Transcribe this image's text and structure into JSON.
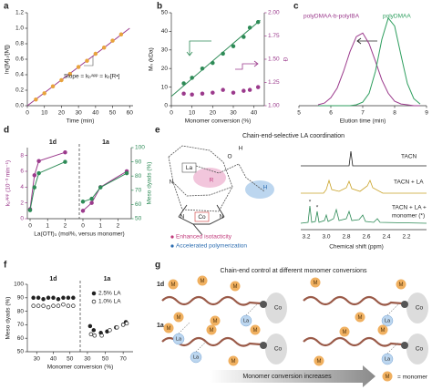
{
  "chart_data": [
    {
      "label": "a",
      "type": "scatter",
      "x_label": "Time (min)",
      "y_label": "ln([M]₀/[M])",
      "x": [
        5,
        10,
        15,
        20,
        25,
        30,
        35,
        40,
        45,
        50,
        55
      ],
      "values": [
        0.08,
        0.16,
        0.25,
        0.33,
        0.41,
        0.5,
        0.58,
        0.67,
        0.75,
        0.84,
        0.92
      ],
      "color": "#e8a33d",
      "fit": {
        "x": [
          0,
          60
        ],
        "values": [
          0,
          1.0
        ],
        "color": "#9b3a8c"
      },
      "annotation": "Slope = kₚᵃᵖᵖ = kₚ[R•]",
      "xlim": [
        0,
        62
      ],
      "xticks": [
        0,
        10,
        20,
        30,
        40,
        50,
        60
      ],
      "ylim": [
        0,
        1.2
      ],
      "yticks": [
        {
          "value": 0,
          "label": "0.0"
        },
        {
          "value": 0.2,
          "label": "0.2"
        },
        {
          "value": 0.4,
          "label": "0.4"
        },
        {
          "value": 0.6,
          "label": "0.6"
        },
        {
          "value": 0.8,
          "label": "0.8"
        },
        {
          "value": 1,
          "label": "1.0"
        },
        {
          "value": 1.2,
          "label": "1.2"
        }
      ]
    },
    {
      "label": "b",
      "type": "scatter",
      "x_label": "Monomer conversion (%)",
      "y_label": "Mₙ (kDa)",
      "y2_label": "Đ",
      "x": [
        6,
        10,
        15,
        20,
        25,
        30,
        35,
        38,
        42
      ],
      "series": [
        {
          "color": "#2e8b57",
          "values": [
            12,
            15,
            20,
            23,
            28,
            32,
            37,
            42,
            45
          ]
        },
        {
          "color": "#9b3a8c",
          "axis": "y2",
          "values": [
            1.13,
            1.12,
            1.13,
            1.14,
            1.17,
            1.14,
            1.16,
            1.17,
            1.2
          ]
        }
      ],
      "fit": {
        "x": [
          0,
          43
        ],
        "values": [
          5,
          46
        ],
        "color": "#2e8b57"
      },
      "y2_color": "#9b3a8c",
      "xlim": [
        0,
        45
      ],
      "xticks": [
        0,
        10,
        20,
        30,
        40
      ],
      "ylim": [
        0,
        50
      ],
      "yticks": [
        0,
        10,
        20,
        30,
        40,
        50
      ],
      "y2lim": [
        1,
        2
      ],
      "y2ticks": [
        {
          "value": 1,
          "label": "1.00"
        },
        {
          "value": 1.25,
          "label": "1.25"
        },
        {
          "value": 1.5,
          "label": "1.50"
        },
        {
          "value": 1.75,
          "label": "1.75"
        },
        {
          "value": 2,
          "label": "2.00"
        }
      ]
    },
    {
      "label": "c",
      "type": "line",
      "x_label": "Elution time (min)",
      "x": [
        5.6,
        5.8,
        6.0,
        6.2,
        6.4,
        6.6,
        6.8,
        7.0,
        7.2,
        7.4,
        7.6,
        7.8,
        8.0,
        8.2,
        8.4,
        8.6,
        8.8
      ],
      "series": [
        {
          "name": "polyDMAA-b-polyIBA",
          "color": "#9b3a8c",
          "values": [
            0.01,
            0.03,
            0.09,
            0.2,
            0.39,
            0.61,
            0.78,
            0.82,
            0.7,
            0.5,
            0.29,
            0.14,
            0.05,
            0.02,
            0.01,
            0,
            0
          ]
        },
        {
          "name": "polyDMAA",
          "color": "#2e9e5e",
          "values": [
            0,
            0,
            0,
            0,
            0,
            0,
            0.01,
            0.04,
            0.14,
            0.39,
            0.75,
            0.99,
            0.9,
            0.57,
            0.25,
            0.08,
            0.02
          ]
        }
      ],
      "xlim": [
        5,
        9
      ],
      "xticks": [
        5,
        6,
        7,
        8,
        9
      ],
      "ylim": [
        0,
        1.05
      ]
    },
    {
      "label": "d",
      "type": "line",
      "markers": true,
      "x_label": "La(OTf)₃ (mol%, versus monomer)",
      "y_label": "kₚᵃᵖᵖ (10⁻³ min⁻¹)",
      "y2_label": "Meso dyads (%)",
      "y_color": "#9b3a8c",
      "y2_color": "#2e8b57",
      "xlim": [
        0,
        2.6
      ],
      "xticks": [
        0,
        1,
        2
      ],
      "ylim": [
        0,
        9
      ],
      "yticks": [
        0,
        2,
        4,
        6,
        8
      ],
      "y2lim": [
        50,
        100
      ],
      "y2ticks": [
        50,
        60,
        70,
        80,
        90,
        100
      ],
      "panels": [
        {
          "title": "1d",
          "x": [
            0,
            0.25,
            0.5,
            2
          ],
          "series": [
            {
              "color": "#9b3a8c",
              "values": [
                1.2,
                5.5,
                7.3,
                8.4
              ]
            },
            {
              "color": "#2e8b57",
              "axis": "y2",
              "values": [
                56,
                72,
                82,
                90
              ]
            }
          ]
        },
        {
          "title": "1a",
          "x": [
            0,
            0.5,
            1,
            2.5
          ],
          "series": [
            {
              "color": "#9b3a8c",
              "values": [
                1,
                2,
                4,
                6
              ]
            },
            {
              "color": "#2e8b57",
              "axis": "y2",
              "values": [
                62,
                64,
                72,
                82
              ]
            }
          ]
        }
      ]
    },
    {
      "label": "f",
      "type": "scatter",
      "x_label": "Monomer conversion (%)",
      "y_label": "Meso dyads (%)",
      "color": "#222",
      "legend": [
        {
          "name": "2.5% LA",
          "filled": true
        },
        {
          "name": "1.0% LA",
          "filled": false
        }
      ],
      "ylim": [
        50,
        100
      ],
      "yticks": [
        50,
        60,
        70,
        80,
        90,
        100
      ],
      "panels": [
        {
          "title": "1d",
          "xlim": [
            26,
            54
          ],
          "xticks": [
            30,
            40,
            50
          ],
          "series": [
            {
              "x": [
                28,
                31,
                34,
                37,
                40,
                43,
                46,
                49,
                52
              ],
              "values": [
                90,
                90,
                89,
                90,
                90,
                89,
                90,
                90,
                90
              ]
            },
            {
              "x": [
                28,
                31,
                34,
                37,
                40,
                43,
                46,
                49,
                52
              ],
              "values": [
                84,
                84,
                84,
                83,
                84,
                84,
                85,
                84,
                84
              ]
            }
          ]
        },
        {
          "title": "1a",
          "xlim": [
            26,
            78
          ],
          "xticks": [
            30,
            50,
            70
          ],
          "series": [
            {
              "x": [
                33,
                37,
                45,
                52,
                62,
                70,
                73
              ],
              "values": [
                69,
                66,
                64,
                65,
                68,
                70,
                72
              ]
            },
            {
              "x": [
                34,
                38,
                46,
                55,
                63,
                70,
                74
              ],
              "values": [
                63,
                62,
                62,
                66,
                68,
                70,
                71
              ]
            }
          ]
        }
      ]
    }
  ],
  "panel_e": {
    "label": "e",
    "title": "Chain-end-selective LA coordination",
    "atoms": {
      "la": "La",
      "co": "Co",
      "n": "N",
      "r": "R",
      "o": "O",
      "h": "H"
    },
    "bullets": [
      "Enhanced isotacticity",
      "Accelerated polymerization"
    ],
    "spectra": [
      [
        "TACN"
      ],
      [
        "TACN + LA"
      ],
      [
        "TACN + LA +",
        "monomer (*)"
      ]
    ],
    "marker": "*",
    "x_label": "Chemical shift (ppm)",
    "xticks": [
      "3.2",
      "3.0",
      "2.8",
      "2.6",
      "2.4",
      "2.2"
    ]
  },
  "panel_g": {
    "label": "g",
    "title": "Chain-end control at different monomer conversions",
    "rows": [
      "1d",
      "1a"
    ],
    "monomer": "M",
    "co": "Co",
    "la": "La",
    "arrow": "Monomer conversion increases",
    "legend": "= monomer"
  }
}
